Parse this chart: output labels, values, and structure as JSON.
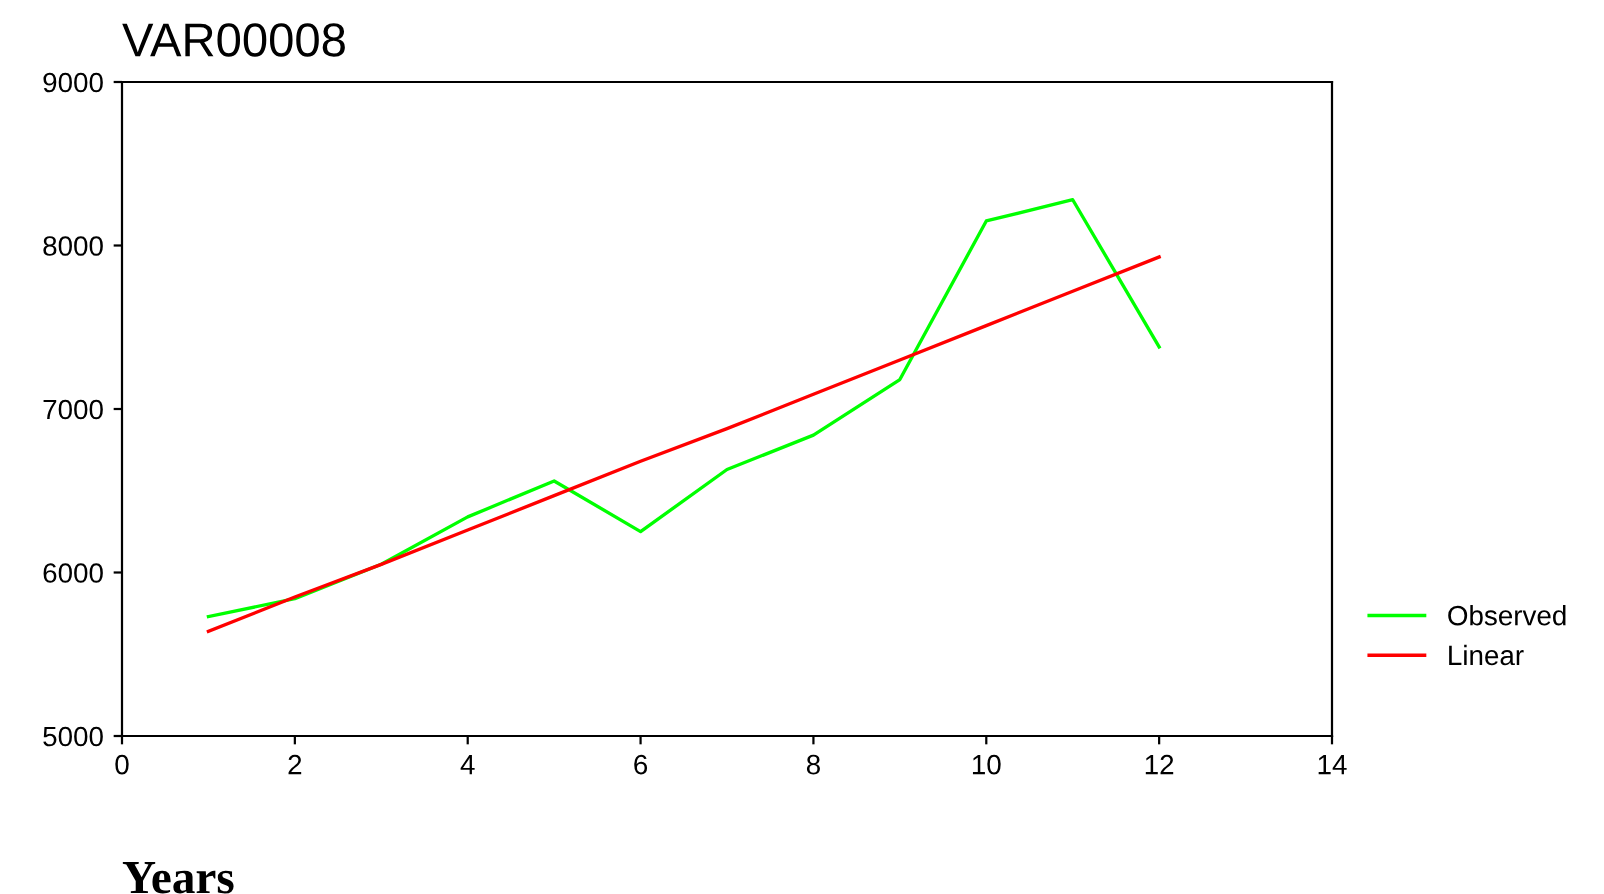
{
  "chart_data": {
    "type": "line",
    "title": "VAR00008",
    "xlabel": "Years",
    "x": [
      1,
      2,
      3,
      4,
      5,
      6,
      7,
      8,
      9,
      10,
      11,
      12
    ],
    "series": [
      {
        "name": "Observed",
        "color": "#00ff00",
        "values": [
          5730,
          5840,
          6050,
          6340,
          6560,
          6250,
          6630,
          6840,
          7180,
          8150,
          8280,
          7380
        ]
      },
      {
        "name": "Linear",
        "color": "#ff0000",
        "values": [
          5640,
          5850,
          6050,
          6260,
          6470,
          6680,
          6880,
          7090,
          7300,
          7510,
          7720,
          7930
        ]
      }
    ],
    "xlim": [
      0,
      14
    ],
    "xticks": [
      0,
      2,
      4,
      6,
      8,
      10,
      12,
      14
    ],
    "ylim": [
      5000,
      9000
    ],
    "yticks": [
      5000,
      6000,
      7000,
      8000,
      9000
    ],
    "grid": false,
    "legend": "right",
    "marker": "none"
  }
}
